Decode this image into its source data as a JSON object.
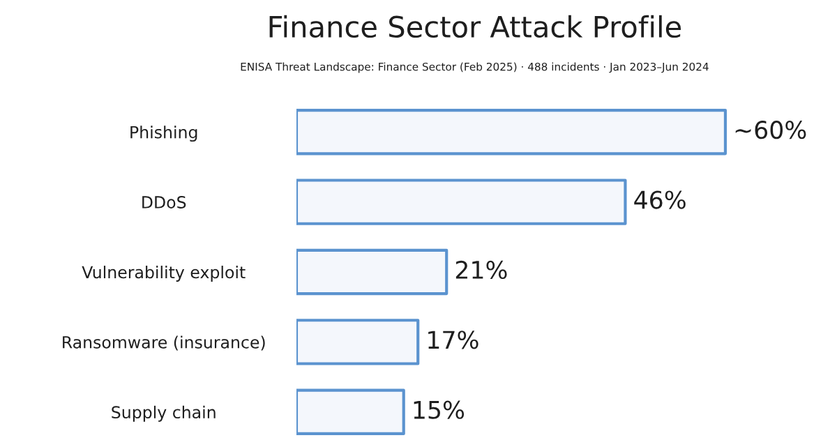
{
  "chart_data": {
    "type": "bar",
    "orientation": "horizontal",
    "title": "Finance Sector Attack Profile",
    "subtitle": "ENISA Threat Landscape: Finance Sector (Feb 2025) · 488 incidents · Jan 2023–Jun 2024",
    "categories": [
      "Phishing",
      "DDoS",
      "Vulnerability exploit",
      "Ransomware (insurance)",
      "Supply chain"
    ],
    "values": [
      60,
      46,
      21,
      17,
      15
    ],
    "value_labels": [
      "~60%",
      "46%",
      "21%",
      "17%",
      "15%"
    ],
    "color": "#5b93cf",
    "tick_labels": "y"
  }
}
